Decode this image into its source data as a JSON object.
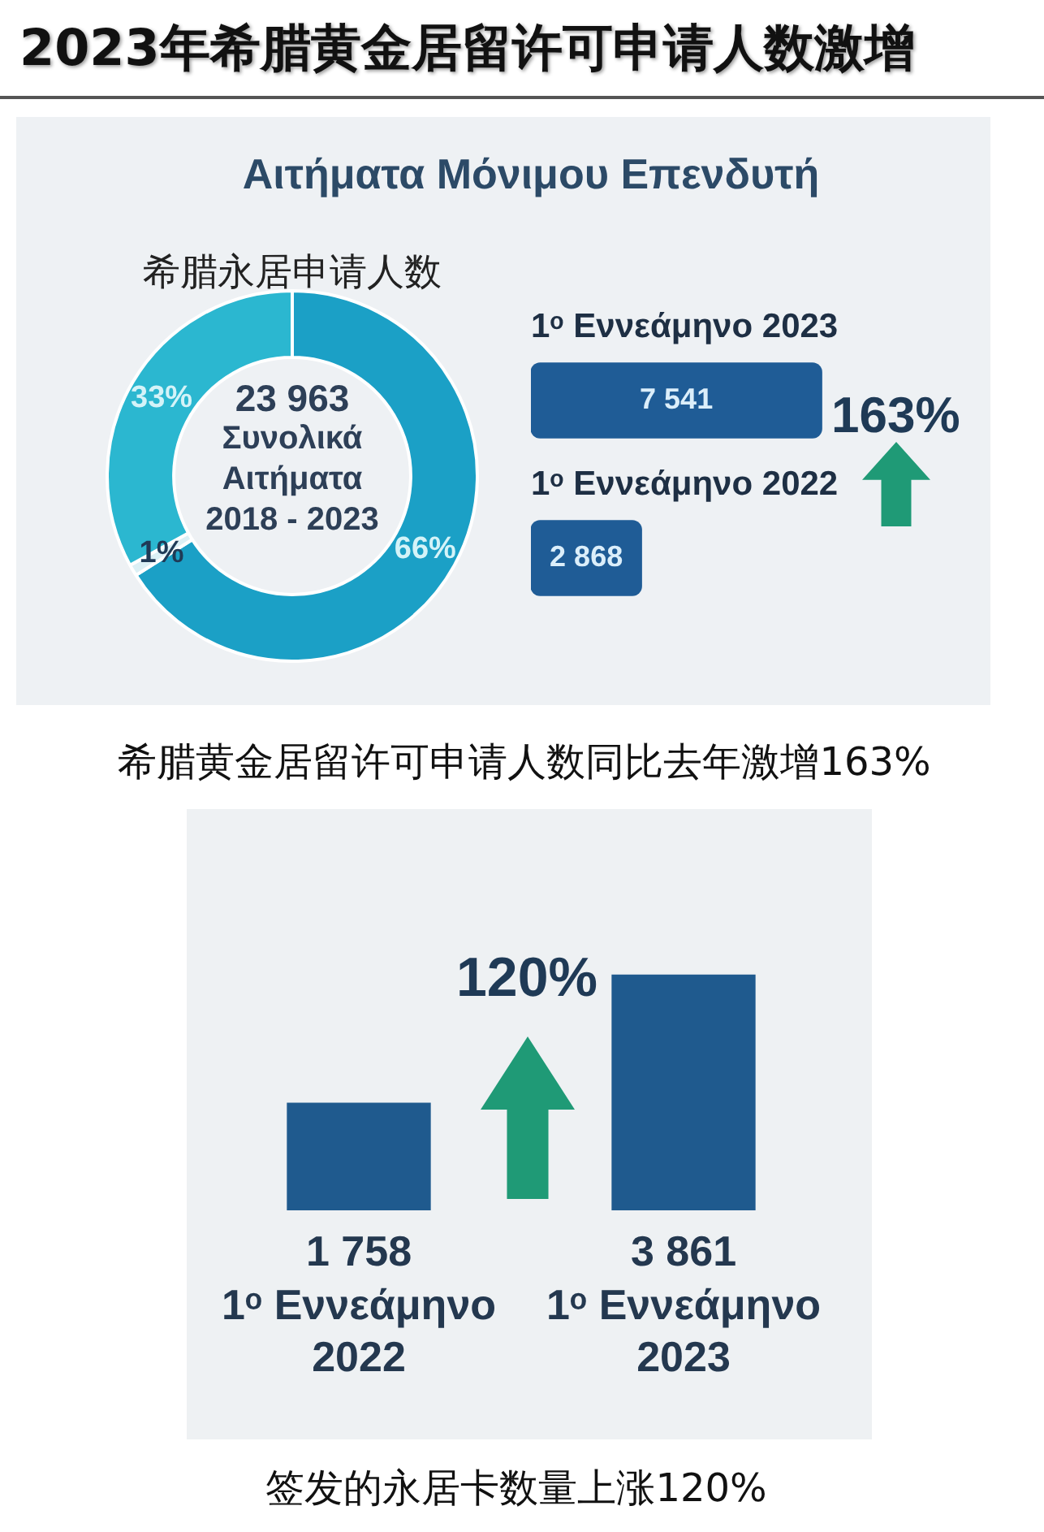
{
  "chart_data": [
    {
      "type": "donut",
      "title": "2023年希腊黄金居留许可申请人数激增",
      "subtitle": "Αιτήματα Μόνιμου Επενδυτή",
      "categories": [
        null,
        null,
        null
      ],
      "values": [
        66,
        1,
        33
      ],
      "colors": [
        "#1ba0c6",
        "#dcf0f5",
        "#2bb7d0"
      ],
      "value_labels": [
        "66%",
        "1%",
        "33%"
      ],
      "annotations": [
        "希腊永居申请人数",
        "23 963",
        "Συνολικά Αιτήματα",
        "2018 - 2023"
      ]
    },
    {
      "type": "bar",
      "orientation": "horizontal",
      "categories": [
        "1ᵒ Εννεάμηνο 2023",
        "1ᵒ Εννεάμηνο 2022"
      ],
      "values": [
        7541,
        2868
      ],
      "color": "#1f5c96",
      "value_labels": [
        "7 541",
        "2 868"
      ],
      "tick_labels": "y",
      "annotations": [
        "163%",
        "希腊黄金居留许可申请人数同比去年激增163%"
      ]
    },
    {
      "type": "bar",
      "categories": [
        "1ᵒ Εννεάμηνο 2022",
        "1ᵒ Εννεάμηνο 2023"
      ],
      "values": [
        1758,
        3861
      ],
      "color": "#1f5a8e",
      "value_labels": [
        "1 758",
        "3 861"
      ],
      "tick_labels": "x",
      "annotations": [
        "120%",
        "签发的永居卡数量上涨120%"
      ]
    }
  ]
}
